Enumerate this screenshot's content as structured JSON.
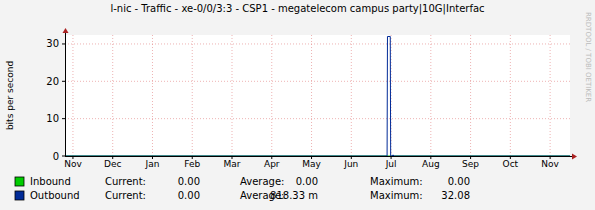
{
  "chart_data": {
    "type": "line",
    "title": "l-nic - Traffic - xe-0/0/3:3 - CSP1 - megatelecom campus party|10G|Interfac",
    "y_label": "bits per second",
    "annotations": [
      "RRDTOOL / TOBI OETIKER"
    ],
    "xlim": [
      -0.2,
      12.5
    ],
    "xticks": [
      {
        "value": 0,
        "label": "Nov"
      },
      {
        "value": 1,
        "label": "Dec"
      },
      {
        "value": 2,
        "label": "Jan"
      },
      {
        "value": 3,
        "label": "Feb"
      },
      {
        "value": 4,
        "label": "Mar"
      },
      {
        "value": 5,
        "label": "Apr"
      },
      {
        "value": 6,
        "label": "May"
      },
      {
        "value": 7,
        "label": "Jun"
      },
      {
        "value": 8,
        "label": "Jul"
      },
      {
        "value": 9,
        "label": "Aug"
      },
      {
        "value": 10,
        "label": "Sep"
      },
      {
        "value": 11,
        "label": "Oct"
      },
      {
        "value": 12,
        "label": "Nov"
      }
    ],
    "ylim": [
      0,
      32.4
    ],
    "yticks": [
      0,
      10,
      20,
      30
    ],
    "grid": true,
    "legend": "bottom",
    "series": [
      {
        "name": "Inbound",
        "color": "#00cc00",
        "x": [
          -0.2,
          12.5
        ],
        "values": [
          0,
          0
        ],
        "stats": {
          "labels": [
            "Current:",
            "Average:",
            "Maximum:"
          ],
          "values": [
            0,
            0,
            0
          ],
          "value_labels": [
            "0.00",
            "0.00",
            "0.00"
          ]
        }
      },
      {
        "name": "Outbound",
        "color": "#002a97",
        "x": [
          -0.2,
          7.9,
          7.91,
          7.98,
          7.99,
          8.03,
          8.05,
          8.07,
          12.5
        ],
        "values": [
          0,
          0,
          32,
          32,
          0,
          0,
          0.3,
          0,
          0
        ],
        "stats": {
          "labels": [
            "Current:",
            "Average:",
            "Maximum:"
          ],
          "values": [
            0,
            0.81833,
            32.08
          ],
          "value_labels": [
            "0.00",
            "818.33 m",
            "32.08"
          ]
        }
      }
    ]
  }
}
